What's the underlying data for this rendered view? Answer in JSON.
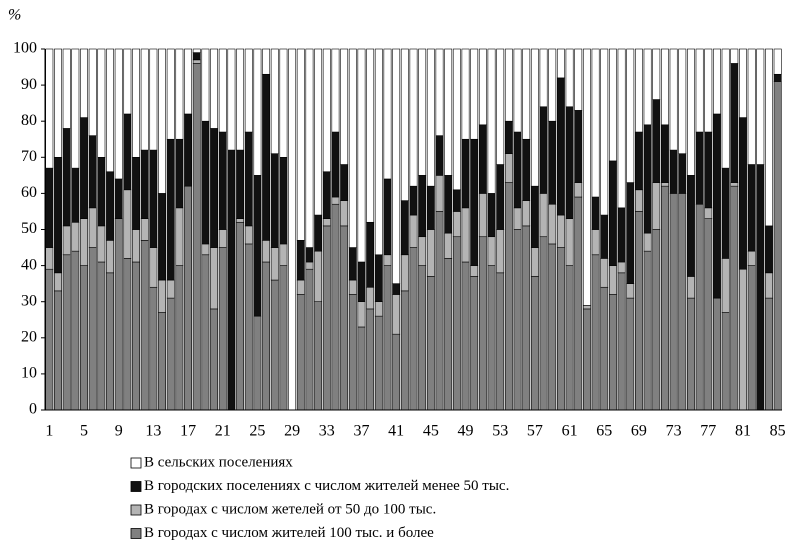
{
  "chart_data": {
    "type": "stacked_bar",
    "y_label": "%",
    "categories": [
      "1",
      null,
      null,
      null,
      "5",
      null,
      null,
      null,
      "9",
      null,
      null,
      null,
      "13",
      null,
      null,
      null,
      "17",
      null,
      null,
      null,
      "21",
      null,
      null,
      null,
      "25",
      null,
      null,
      null,
      "29",
      null,
      null,
      null,
      "33",
      null,
      null,
      null,
      "37",
      null,
      null,
      null,
      "41",
      null,
      null,
      null,
      "45",
      null,
      null,
      null,
      "49",
      null,
      null,
      null,
      "53",
      null,
      null,
      null,
      "57",
      null,
      null,
      null,
      "61",
      null,
      null,
      null,
      "65",
      null,
      null,
      null,
      "69",
      null,
      null,
      null,
      "73",
      null,
      null,
      null,
      "77",
      null,
      null,
      null,
      "81",
      null,
      null,
      null,
      "85"
    ],
    "series": [
      {
        "name": "В сельских поселениях",
        "color": "#ffffff",
        "values": [
          33,
          30,
          22,
          33,
          19,
          24,
          30,
          34,
          36,
          18,
          30,
          28,
          28,
          40,
          25,
          25,
          18,
          1,
          20,
          22,
          23,
          28,
          28,
          23,
          35,
          7,
          29,
          30,
          100,
          53,
          55,
          46,
          34,
          23,
          32,
          55,
          59,
          48,
          57,
          36,
          65,
          42,
          38,
          35,
          38,
          24,
          35,
          39,
          25,
          25,
          21,
          40,
          32,
          20,
          23,
          25,
          38,
          16,
          20,
          8,
          16,
          17,
          71,
          41,
          46,
          31,
          44,
          37,
          23,
          21,
          14,
          21,
          28,
          29,
          35,
          23,
          23,
          18,
          33,
          4,
          19,
          32,
          32,
          49,
          7
        ]
      },
      {
        "name": "В городских поселениях с числом жителей менее 50 тыс.",
        "color": "#111111",
        "values": [
          22,
          32,
          27,
          15,
          28,
          20,
          19,
          19,
          11,
          21,
          20,
          19,
          27,
          24,
          39,
          19,
          20,
          2,
          34,
          33,
          27,
          72,
          19,
          26,
          39,
          46,
          26,
          24,
          0,
          11,
          4,
          10,
          13,
          18,
          10,
          9,
          11,
          18,
          13,
          21,
          3,
          15,
          8,
          17,
          12,
          11,
          16,
          6,
          19,
          35,
          19,
          12,
          18,
          9,
          21,
          17,
          17,
          24,
          23,
          38,
          31,
          20,
          0,
          9,
          12,
          29,
          15,
          28,
          16,
          30,
          23,
          16,
          12,
          11,
          28,
          20,
          21,
          51,
          25,
          33,
          42,
          24,
          68,
          13,
          2
        ]
      },
      {
        "name": "В городах с числом жетелей от 50 до 100 тыс.",
        "color": "#b4b4b4",
        "values": [
          6,
          5,
          8,
          8,
          13,
          11,
          10,
          9,
          0,
          19,
          9,
          6,
          11,
          9,
          5,
          16,
          0,
          1,
          3,
          17,
          5,
          0,
          1,
          5,
          0,
          6,
          9,
          6,
          0,
          4,
          2,
          14,
          2,
          2,
          7,
          4,
          7,
          6,
          4,
          3,
          11,
          10,
          9,
          8,
          13,
          10,
          7,
          7,
          15,
          3,
          12,
          8,
          12,
          8,
          6,
          7,
          8,
          12,
          11,
          9,
          13,
          4,
          1,
          7,
          8,
          8,
          3,
          4,
          6,
          5,
          13,
          1,
          0,
          0,
          6,
          0,
          3,
          0,
          15,
          1,
          39,
          4,
          0,
          7,
          0
        ]
      },
      {
        "name": "В городах с числом жителей 100 тыс. и более",
        "color": "#808080",
        "values": [
          39,
          33,
          43,
          44,
          40,
          45,
          41,
          38,
          53,
          42,
          41,
          47,
          34,
          27,
          31,
          40,
          62,
          96,
          43,
          28,
          45,
          0,
          52,
          46,
          26,
          41,
          36,
          40,
          0,
          32,
          39,
          30,
          51,
          57,
          51,
          32,
          23,
          28,
          26,
          40,
          21,
          33,
          45,
          40,
          37,
          55,
          42,
          48,
          41,
          37,
          48,
          40,
          38,
          63,
          50,
          51,
          37,
          48,
          46,
          45,
          40,
          59,
          28,
          43,
          34,
          32,
          38,
          31,
          55,
          44,
          50,
          62,
          60,
          60,
          31,
          57,
          53,
          31,
          27,
          62,
          0,
          40,
          0,
          31,
          91
        ]
      }
    ],
    "ylim": [
      0,
      100
    ],
    "yticks": [
      0,
      10,
      20,
      30,
      40,
      50,
      60,
      70,
      80,
      90,
      100
    ]
  }
}
